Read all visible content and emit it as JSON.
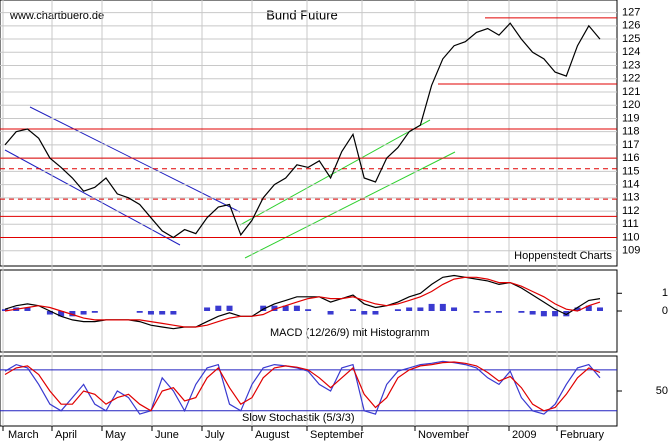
{
  "chart_data": [
    {
      "type": "line",
      "title": "Bund Future",
      "source": "www.chartbuero.de",
      "credit": "Hoppenstedt Charts",
      "color": "#000000",
      "values": [
        117,
        118,
        118.2,
        117.5,
        116,
        115.3,
        114.5,
        113.5,
        113.8,
        114.5,
        113.3,
        113,
        112.5,
        111.5,
        110.5,
        110,
        110.6,
        110.3,
        111.5,
        112.3,
        112.5,
        110.2,
        111.3,
        113,
        114,
        114.5,
        115.5,
        115.3,
        115.8,
        114.5,
        116.5,
        117.8,
        114.5,
        114.2,
        116,
        116.8,
        118,
        118.5,
        121.5,
        123.5,
        124.5,
        124.8,
        125.5,
        125.8,
        125.3,
        126.2,
        125,
        124,
        123.5,
        122.5,
        122.2,
        124.5,
        126,
        125
      ],
      "ylim": [
        108,
        127.8
      ],
      "yticks": [
        109,
        110,
        111,
        112,
        113,
        114,
        115,
        116,
        117,
        118,
        119,
        120,
        121,
        122,
        123,
        124,
        125,
        126,
        127
      ],
      "levels": [
        118.2,
        116,
        115.2,
        112.9,
        111.6,
        110,
        126.6,
        121.6
      ],
      "grid": true,
      "xlabels": [
        "March",
        "April",
        "May",
        "June",
        "July",
        "August",
        "September",
        "November",
        "2009",
        "February"
      ]
    },
    {
      "type": "macd",
      "title": "MACD (12/26/9) mit Histogramm",
      "series": [
        {
          "color": "#000000",
          "values": [
            0.1,
            0.3,
            0.4,
            0.3,
            0,
            -0.3,
            -0.5,
            -0.6,
            -0.6,
            -0.5,
            -0.5,
            -0.5,
            -0.6,
            -0.8,
            -0.9,
            -1.0,
            -0.9,
            -0.9,
            -0.6,
            -0.3,
            -0.1,
            -0.3,
            -0.3,
            0.1,
            0.4,
            0.6,
            0.8,
            0.8,
            0.8,
            0.5,
            0.7,
            0.9,
            0.4,
            0.2,
            0.3,
            0.5,
            0.8,
            1.0,
            1.5,
            1.9,
            2.0,
            1.9,
            1.8,
            1.7,
            1.5,
            1.6,
            1.3,
            0.9,
            0.5,
            0.1,
            -0.2,
            0.2,
            0.6,
            0.7
          ]
        },
        {
          "color": "#e00000",
          "values": [
            0,
            0.1,
            0.2,
            0.3,
            0.2,
            0,
            -0.2,
            -0.4,
            -0.5,
            -0.5,
            -0.5,
            -0.5,
            -0.5,
            -0.6,
            -0.7,
            -0.8,
            -0.9,
            -0.9,
            -0.8,
            -0.6,
            -0.4,
            -0.3,
            -0.3,
            -0.2,
            0.1,
            0.3,
            0.5,
            0.7,
            0.8,
            0.7,
            0.7,
            0.8,
            0.6,
            0.4,
            0.3,
            0.4,
            0.6,
            0.8,
            1.1,
            1.5,
            1.8,
            1.9,
            1.9,
            1.8,
            1.6,
            1.6,
            1.4,
            1.1,
            0.8,
            0.4,
            0.1,
            0,
            0.3,
            0.5
          ]
        }
      ],
      "histogram": [
        0.1,
        0.2,
        0.2,
        0,
        -0.2,
        -0.3,
        -0.3,
        -0.2,
        -0.1,
        0,
        0,
        0,
        -0.1,
        -0.2,
        -0.2,
        -0.2,
        0,
        0,
        0.2,
        0.3,
        0.3,
        0,
        0,
        0.3,
        0.3,
        0.3,
        0.3,
        0.1,
        0,
        -0.2,
        0,
        0.1,
        -0.2,
        -0.2,
        0,
        0.1,
        0.2,
        0.2,
        0.4,
        0.4,
        0.2,
        0,
        -0.1,
        -0.1,
        -0.1,
        0,
        -0.1,
        -0.2,
        -0.3,
        -0.3,
        -0.3,
        0.2,
        0.3,
        0.2
      ],
      "histogram_color": "#3a3ad0",
      "ylim": [
        -2.2,
        2.2
      ],
      "yticks": [
        1,
        0
      ]
    },
    {
      "type": "stochastic",
      "title": "Slow Stochastik (5/3/3)",
      "series": [
        {
          "color": "#3a3ad0",
          "values": [
            80,
            90,
            85,
            60,
            30,
            20,
            40,
            60,
            30,
            20,
            50,
            40,
            15,
            20,
            70,
            50,
            20,
            60,
            85,
            90,
            30,
            20,
            60,
            85,
            90,
            88,
            85,
            80,
            60,
            50,
            85,
            90,
            20,
            15,
            60,
            80,
            85,
            90,
            92,
            95,
            93,
            90,
            85,
            70,
            60,
            80,
            40,
            20,
            15,
            30,
            60,
            85,
            90,
            70
          ]
        },
        {
          "color": "#e00000",
          "values": [
            75,
            85,
            88,
            75,
            50,
            30,
            30,
            50,
            45,
            30,
            40,
            45,
            30,
            20,
            50,
            55,
            35,
            40,
            70,
            85,
            55,
            30,
            40,
            70,
            85,
            88,
            86,
            82,
            70,
            55,
            70,
            85,
            45,
            25,
            40,
            70,
            82,
            88,
            90,
            93,
            94,
            92,
            88,
            78,
            65,
            72,
            55,
            30,
            20,
            25,
            45,
            70,
            85,
            78
          ]
        }
      ],
      "levels": [
        82,
        20
      ],
      "level_color": "#2020c0",
      "ylim": [
        0,
        100
      ],
      "yticks": [
        50
      ]
    }
  ]
}
